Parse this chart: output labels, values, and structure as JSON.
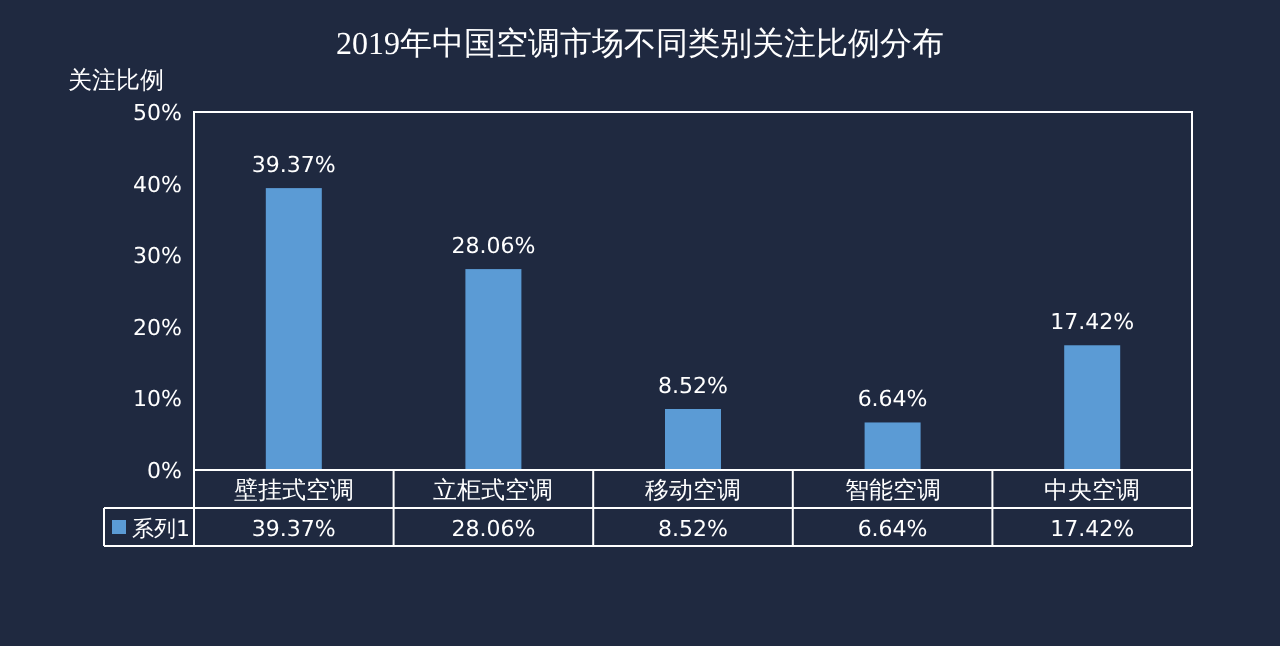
{
  "chart_data": {
    "type": "bar",
    "title": "2019年中国空调市场不同类别关注比例分布",
    "ylabel": "关注比例",
    "categories": [
      "壁挂式空调",
      "立柜式空调",
      "移动空调",
      "智能空调",
      "中央空调"
    ],
    "series": [
      {
        "name": "系列1",
        "color": "#5b9bd5",
        "values": [
          39.37,
          28.06,
          8.52,
          6.64,
          17.42
        ],
        "value_labels": [
          "39.37%",
          "28.06%",
          "8.52%",
          "6.64%",
          "17.42%"
        ]
      }
    ],
    "ylim": [
      0,
      50
    ],
    "yticks": [
      {
        "value": 0,
        "label": "0%"
      },
      {
        "value": 10,
        "label": "10%"
      },
      {
        "value": 20,
        "label": "20%"
      },
      {
        "value": 30,
        "label": "30%"
      },
      {
        "value": 40,
        "label": "40%"
      },
      {
        "value": 50,
        "label": "50%"
      }
    ],
    "grid": false
  }
}
